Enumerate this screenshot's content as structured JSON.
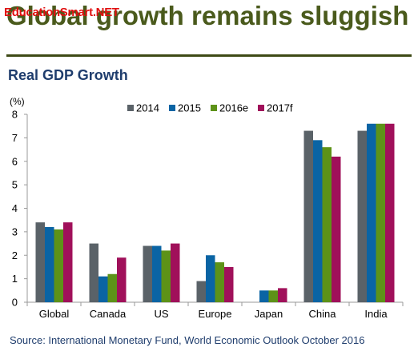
{
  "header": {
    "title": "Global growth remains sluggish",
    "watermark": "EducationSmart.NET"
  },
  "subtitle": "Real GDP Growth",
  "source": "Source:  International Monetary Fund, World Economic Outlook October 2016",
  "colors": {
    "2014": "#5a6268",
    "2015": "#0a64a4",
    "2016e": "#5d9218",
    "2017f": "#a0105a",
    "axis": "#9a9a9a",
    "text": "#000000"
  },
  "chart_data": {
    "type": "bar",
    "ylabel": "(%)",
    "ylim": [
      0,
      8
    ],
    "yticks": [
      0,
      1,
      2,
      3,
      4,
      5,
      6,
      7,
      8
    ],
    "grid": false,
    "legend_position": "top",
    "categories": [
      "Global",
      "Canada",
      "US",
      "Europe",
      "Japan",
      "China",
      "India"
    ],
    "series": [
      {
        "name": "2014",
        "values": [
          3.4,
          2.5,
          2.4,
          0.9,
          0.0,
          7.3,
          7.3
        ]
      },
      {
        "name": "2015",
        "values": [
          3.2,
          1.1,
          2.4,
          2.0,
          0.5,
          6.9,
          7.6
        ]
      },
      {
        "name": "2016e",
        "values": [
          3.1,
          1.2,
          2.2,
          1.7,
          0.5,
          6.6,
          7.6
        ]
      },
      {
        "name": "2017f",
        "values": [
          3.4,
          1.9,
          2.5,
          1.5,
          0.6,
          6.2,
          7.6
        ]
      }
    ]
  }
}
